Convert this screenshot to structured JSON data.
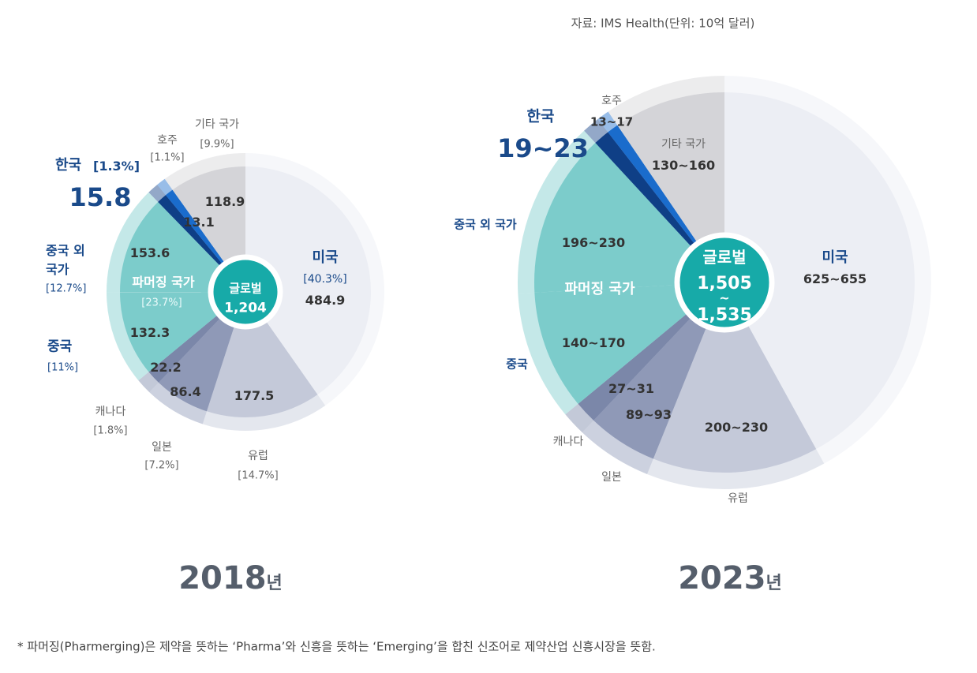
{
  "source": "자료: IMS Health(단위: 10억 달러)",
  "footnote": "* 파머징(Pharmerging)은 제약을 뜻하는 ‘Pharma’와 신흥을 뜻하는 ‘Emerging’을 합친 신조어로 제약산업 신흥시장을 뜻함.",
  "colors": {
    "us": "#eceef4",
    "europe": "#c4c9d9",
    "japan": "#8f99b7",
    "canada": "#7b87a9",
    "china": "#7ccccb",
    "other_pharmerging": "#7ccccb",
    "korea": "#0f3f86",
    "australia": "#1a6ccc",
    "others": "#d4d4d8",
    "center": "#17aaa8"
  },
  "chart_data": [
    {
      "type": "pie",
      "title": "2018",
      "title_suffix": "년",
      "center_label": "글로벌",
      "center_value": "1,204",
      "group_label": "파머징 국가",
      "group_pct": "[23.7%]",
      "slices": [
        {
          "key": "us",
          "name": "미국",
          "pct": "[40.3%]",
          "value": 484.9,
          "label": "484.9"
        },
        {
          "key": "europe",
          "name": "유럽",
          "pct": "[14.7%]",
          "value": 177.5,
          "label": "177.5"
        },
        {
          "key": "japan",
          "name": "일본",
          "pct": "[7.2%]",
          "value": 86.4,
          "label": "86.4"
        },
        {
          "key": "canada",
          "name": "캐나다",
          "pct": "[1.8%]",
          "value": 22.2,
          "label": "22.2"
        },
        {
          "key": "china",
          "name": "중국",
          "pct": "[11%]",
          "value": 132.3,
          "label": "132.3"
        },
        {
          "key": "other_pharmerging",
          "name": "중국 외 국가",
          "name_line1": "중국 외",
          "name_line2": "국가",
          "pct": "[12.7%]",
          "value": 153.6,
          "label": "153.6"
        },
        {
          "key": "korea",
          "name": "한국",
          "pct": "[1.3%]",
          "value": 15.8,
          "label": "15.8"
        },
        {
          "key": "australia",
          "name": "호주",
          "pct": "[1.1%]",
          "value": 13.1,
          "label": "13.1"
        },
        {
          "key": "others",
          "name": "기타 국가",
          "pct": "[9.9%]",
          "value": 118.9,
          "label": "118.9"
        }
      ]
    },
    {
      "type": "pie",
      "title": "2023",
      "title_suffix": "년",
      "center_label": "글로벌",
      "center_value_low": "1,505",
      "center_value_sep": "~",
      "center_value_high": "1,535",
      "group_label": "파머징 국가",
      "slices": [
        {
          "key": "us",
          "name": "미국",
          "value_range": [
            625,
            655
          ],
          "label": "625~655"
        },
        {
          "key": "europe",
          "name": "유럽",
          "value_range": [
            200,
            230
          ],
          "label": "200~230"
        },
        {
          "key": "japan",
          "name": "일본",
          "value_range": [
            89,
            93
          ],
          "label": "89~93"
        },
        {
          "key": "canada",
          "name": "캐나다",
          "value_range": [
            27,
            31
          ],
          "label": "27~31"
        },
        {
          "key": "china",
          "name": "중국",
          "value_range": [
            140,
            170
          ],
          "label": "140~170"
        },
        {
          "key": "other_pharmerging",
          "name": "중국 외 국가",
          "value_range": [
            196,
            230
          ],
          "label": "196~230"
        },
        {
          "key": "korea",
          "name": "한국",
          "value_range": [
            19,
            23
          ],
          "label": "19~23"
        },
        {
          "key": "australia",
          "name": "호주",
          "value_range": [
            13,
            17
          ],
          "label": "13~17"
        },
        {
          "key": "others",
          "name": "기타 국가",
          "value_range": [
            130,
            160
          ],
          "label": "130~160"
        }
      ]
    }
  ]
}
